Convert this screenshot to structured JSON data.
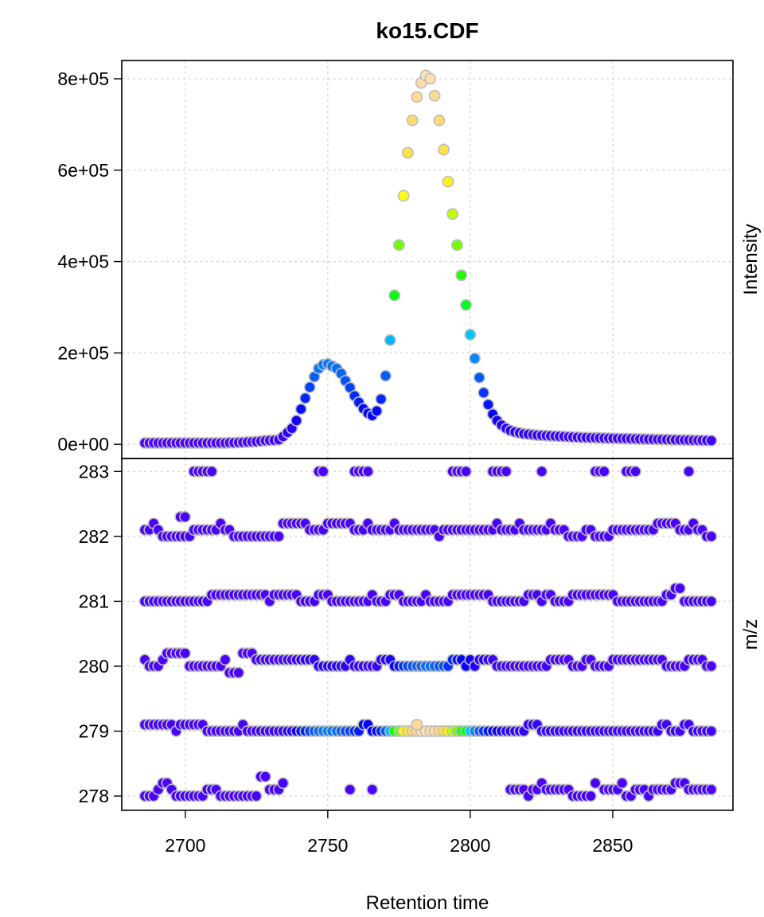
{
  "chart_data": [
    {
      "type": "scatter",
      "title": "ko15.CDF",
      "xlabel": "Retention time",
      "ylabel": "Intensity",
      "xlim": [
        2677.7,
        2892.2
      ],
      "ylim": [
        -31000,
        840000
      ],
      "x_ticks": [
        "2700",
        "2750",
        "2800",
        "2850"
      ],
      "x_tick_values": [
        2700,
        2750,
        2800,
        2850
      ],
      "y_ticks": [
        "0e+00",
        "2e+05",
        "4e+05",
        "6e+05",
        "8e+05"
      ],
      "y_tick_values": [
        0,
        200000,
        400000,
        600000,
        800000
      ],
      "grid": true,
      "colormap": "topo",
      "marker_border_color": "#bdbdbd",
      "rt": [
        2685.8,
        2687.4,
        2688.9,
        2690.5,
        2692.1,
        2693.6,
        2695.2,
        2696.8,
        2698.3,
        2699.9,
        2701.5,
        2703.0,
        2704.6,
        2706.1,
        2707.7,
        2709.3,
        2710.8,
        2712.4,
        2714.0,
        2715.5,
        2717.1,
        2718.7,
        2720.2,
        2721.8,
        2723.4,
        2724.9,
        2726.5,
        2728.1,
        2729.6,
        2731.2,
        2732.8,
        2734.3,
        2735.9,
        2737.4,
        2739.0,
        2740.6,
        2742.1,
        2743.7,
        2745.3,
        2746.8,
        2748.4,
        2750.0,
        2751.5,
        2753.1,
        2754.7,
        2756.2,
        2757.8,
        2759.4,
        2760.9,
        2762.5,
        2764.1,
        2765.6,
        2767.2,
        2768.7,
        2770.3,
        2771.9,
        2773.4,
        2775.0,
        2776.6,
        2778.1,
        2779.7,
        2781.3,
        2782.8,
        2784.4,
        2786.0,
        2787.5,
        2789.1,
        2790.7,
        2792.2,
        2793.8,
        2795.4,
        2796.9,
        2798.5,
        2800.0,
        2801.6,
        2803.2,
        2804.7,
        2806.3,
        2807.9,
        2809.4,
        2811.0,
        2812.6,
        2814.1,
        2815.7,
        2817.3,
        2818.8,
        2820.4,
        2822.0,
        2823.5,
        2825.1,
        2826.7,
        2828.2,
        2829.8,
        2831.3,
        2832.9,
        2834.5,
        2836.0,
        2837.6,
        2839.2,
        2840.7,
        2842.3,
        2843.9,
        2845.4,
        2847.0,
        2848.6,
        2850.1,
        2851.7,
        2853.3,
        2854.8,
        2856.4,
        2858.0,
        2859.5,
        2861.1,
        2862.6,
        2864.2,
        2865.8,
        2867.3,
        2868.9,
        2870.5,
        2872.0,
        2873.6,
        2875.2,
        2876.7,
        2878.3,
        2879.9,
        2881.4,
        2883.0,
        2884.6
      ],
      "intensity": [
        3000,
        3000,
        3000,
        3000,
        3000,
        3000,
        3000,
        3000,
        3000,
        3000,
        3000,
        3000,
        3000,
        3000,
        3000,
        3000,
        3000,
        3000,
        3000,
        3500,
        3500,
        4000,
        4500,
        5000,
        5500,
        6000,
        7000,
        8000,
        8500,
        9000,
        10000,
        17000,
        26000,
        35000,
        52000,
        77000,
        101000,
        125000,
        148000,
        166000,
        174000,
        176000,
        171000,
        166000,
        155000,
        139000,
        124000,
        106000,
        92000,
        78000,
        68000,
        63000,
        73000,
        99000,
        150000,
        228000,
        326000,
        436000,
        544000,
        638000,
        709000,
        760000,
        791000,
        807000,
        800000,
        763000,
        709000,
        645000,
        575000,
        504000,
        436000,
        370000,
        305000,
        240000,
        188000,
        146000,
        113000,
        87000,
        66000,
        52000,
        42000,
        35000,
        30000,
        27000,
        25000,
        23000,
        22000,
        21000,
        20000,
        19500,
        19000,
        18500,
        18000,
        17500,
        17000,
        16500,
        16000,
        15500,
        15000,
        14800,
        14500,
        14200,
        14000,
        13700,
        13400,
        13200,
        13000,
        12700,
        12400,
        12200,
        12000,
        11700,
        11500,
        11200,
        11000,
        10800,
        10500,
        10300,
        10000,
        9800,
        9600,
        9400,
        9200,
        9000,
        8800,
        8600,
        8400,
        8200
      ]
    },
    {
      "type": "scatter",
      "xlabel": "Retention time",
      "ylabel": "m/z",
      "xlim": [
        2677.7,
        2892.2
      ],
      "ylim": [
        277.78,
        283.2
      ],
      "y_ticks": [
        "278",
        "279",
        "280",
        "281",
        "282",
        "283"
      ],
      "y_tick_values": [
        278,
        279,
        280,
        281,
        282,
        283
      ],
      "grid": true,
      "mz_bands": {
        "283": [
          null,
          null,
          null,
          null,
          null,
          null,
          null,
          null,
          null,
          null,
          null,
          283,
          283,
          283,
          283,
          283,
          null,
          null,
          null,
          null,
          null,
          null,
          null,
          null,
          null,
          null,
          null,
          null,
          null,
          null,
          null,
          null,
          null,
          null,
          null,
          null,
          null,
          null,
          null,
          283,
          283,
          null,
          null,
          null,
          null,
          null,
          null,
          283,
          283,
          283,
          283,
          null,
          null,
          null,
          null,
          null,
          null,
          null,
          null,
          null,
          null,
          null,
          null,
          null,
          null,
          null,
          null,
          null,
          null,
          283,
          283,
          283,
          283,
          null,
          null,
          null,
          null,
          null,
          283,
          283,
          283,
          283,
          null,
          null,
          null,
          null,
          null,
          null,
          null,
          283,
          null,
          null,
          null,
          null,
          null,
          null,
          null,
          null,
          null,
          null,
          null,
          283,
          283,
          283,
          null,
          null,
          null,
          null,
          283,
          283,
          283,
          null,
          null,
          null,
          null,
          null,
          null,
          null,
          null,
          null,
          null,
          null,
          283,
          null,
          null,
          null,
          null,
          null
        ],
        "282": [
          282.1,
          282.1,
          282.2,
          282.1,
          282,
          282,
          282,
          282,
          282,
          282,
          282,
          282.1,
          282.1,
          282.1,
          282.1,
          282.1,
          282.1,
          282.2,
          282.1,
          282.1,
          282,
          282,
          282,
          282,
          282,
          282,
          282,
          282,
          282,
          282,
          282,
          282.2,
          282.2,
          282.2,
          282.2,
          282.2,
          282.2,
          282.1,
          282.1,
          282.1,
          282.1,
          282.2,
          282.2,
          282.2,
          282.2,
          282.2,
          282.2,
          282.1,
          282.1,
          282.1,
          282.2,
          282.1,
          282.1,
          282.1,
          282.1,
          282.1,
          282.2,
          282.1,
          282.1,
          282.1,
          282.1,
          282.1,
          282.1,
          282.1,
          282.1,
          282.1,
          282,
          282.1,
          282.1,
          282.1,
          282.1,
          282.1,
          282.1,
          282.1,
          282.1,
          282.1,
          282.1,
          282.1,
          282.1,
          282.2,
          282.1,
          282.1,
          282.1,
          282.1,
          282.2,
          282.1,
          282.1,
          282.1,
          282.1,
          282.1,
          282.1,
          282.2,
          282.1,
          282.1,
          282.1,
          282,
          282,
          282,
          282,
          282.1,
          282.1,
          282,
          282,
          282,
          282,
          282.1,
          282.1,
          282.1,
          282.1,
          282.1,
          282.1,
          282.1,
          282.1,
          282.1,
          282.1,
          282.2,
          282.2,
          282.2,
          282.2,
          282.2,
          282.1,
          282.1,
          282.1,
          282.2,
          282.1,
          282.1,
          282,
          282
        ],
        "281": [
          281,
          281,
          281,
          281,
          281,
          281,
          281,
          281,
          281,
          281,
          281,
          281,
          281,
          281,
          281,
          281.1,
          281.1,
          281.1,
          281.1,
          281.1,
          281.1,
          281.1,
          281.1,
          281.1,
          281.1,
          281.1,
          281.1,
          281.1,
          281,
          281.1,
          281.1,
          281.1,
          281.1,
          281.1,
          281.1,
          281,
          281,
          281,
          281,
          281.1,
          281.1,
          281.1,
          281,
          281,
          281,
          281,
          281,
          281,
          281,
          281,
          281,
          281.1,
          281,
          281,
          281,
          281.1,
          281.1,
          281.1,
          281,
          281,
          281,
          281,
          281,
          281.1,
          281,
          281,
          281,
          281,
          281,
          281.1,
          281.1,
          281.1,
          281.1,
          281.1,
          281.1,
          281.1,
          281.1,
          281.1,
          281,
          281,
          281,
          281,
          281,
          281,
          281,
          281,
          281.1,
          281.1,
          281.1,
          281,
          281.1,
          281.1,
          281,
          281,
          281,
          281,
          281.1,
          281.1,
          281.1,
          281.1,
          281.1,
          281.1,
          281.1,
          281.1,
          281.1,
          281.1,
          281,
          281,
          281,
          281,
          281,
          281,
          281,
          281,
          281,
          281,
          281,
          281.1,
          281.1,
          281.2,
          281.2,
          281,
          281,
          281,
          281,
          281,
          281,
          281
        ],
        "280": [
          280.1,
          280,
          280,
          280,
          280.1,
          280.2,
          280.2,
          280.2,
          280.2,
          280.2,
          280,
          280,
          280,
          280,
          280,
          280,
          280,
          280,
          280.1,
          279.9,
          279.9,
          279.9,
          280.2,
          280.2,
          280.2,
          280.1,
          280.1,
          280.1,
          280.1,
          280.1,
          280.1,
          280.1,
          280.1,
          280.1,
          280.1,
          280.1,
          280.1,
          280.1,
          280.1,
          280,
          280,
          280,
          280,
          280,
          280,
          280,
          280.1,
          280,
          280,
          280,
          280,
          280,
          280,
          280.1,
          280.1,
          280.1,
          280,
          280,
          280,
          280,
          280,
          280,
          280,
          280,
          280,
          280,
          280,
          280,
          280,
          280.1,
          280.1,
          280.1,
          280,
          280.1,
          280,
          280.1,
          280.1,
          280.1,
          280.1,
          280,
          280,
          280,
          280,
          280,
          280,
          280,
          280,
          280,
          280,
          280,
          280,
          280.1,
          280.1,
          280.1,
          280.1,
          280.1,
          280,
          280,
          280,
          280.1,
          280.1,
          280,
          280,
          280,
          280,
          280.1,
          280.1,
          280.1,
          280.1,
          280.1,
          280.1,
          280.1,
          280.1,
          280.1,
          280.1,
          280.1,
          280.1,
          280,
          280,
          280,
          280,
          280,
          280.1,
          280.1,
          280.1,
          280.1,
          280,
          280
        ],
        "279": [
          279.1,
          279.1,
          279.1,
          279.1,
          279.1,
          279.1,
          279.1,
          279,
          279.1,
          279.1,
          279.1,
          279.1,
          279.1,
          279.1,
          279,
          279,
          279,
          279,
          279,
          279,
          279,
          279,
          279.1,
          279,
          279,
          279,
          279,
          279,
          279,
          279,
          279,
          279,
          279,
          279,
          279,
          279,
          279,
          279,
          279,
          279,
          279,
          279,
          279,
          279,
          279,
          279,
          279,
          279,
          279,
          279.1,
          279.1,
          279,
          279,
          279,
          279,
          279,
          279,
          279,
          279,
          279,
          279,
          279,
          279,
          279,
          279,
          279,
          279,
          279,
          279,
          279,
          279,
          279,
          279,
          279,
          279,
          279,
          279,
          279,
          279,
          279,
          279,
          279,
          279,
          279,
          279,
          279,
          279.1,
          279.1,
          279.1,
          279,
          279,
          279,
          279,
          279,
          279,
          279,
          279,
          279,
          279,
          279,
          279,
          279,
          279,
          279,
          279,
          279,
          279,
          279,
          279,
          279,
          279,
          279,
          279,
          279,
          279,
          279,
          279.1,
          279.1,
          279,
          279,
          279,
          279.1,
          279.1,
          279,
          279,
          279,
          279,
          279
        ],
        "278": [
          278,
          278,
          278,
          278.1,
          278.2,
          278.2,
          278.1,
          278,
          278,
          278,
          278,
          278,
          278,
          278,
          278.1,
          278.1,
          278.1,
          278,
          278,
          278,
          278,
          278,
          278,
          278,
          278,
          278,
          278.3,
          278.3,
          278.1,
          278.1,
          278.1,
          278.2,
          null,
          null,
          null,
          null,
          null,
          null,
          null,
          null,
          null,
          null,
          null,
          null,
          null,
          null,
          278.1,
          null,
          null,
          null,
          null,
          278.1,
          null,
          null,
          null,
          null,
          null,
          null,
          null,
          null,
          null,
          null,
          null,
          null,
          null,
          null,
          null,
          null,
          null,
          null,
          null,
          null,
          null,
          null,
          null,
          null,
          null,
          null,
          null,
          null,
          null,
          null,
          278.1,
          278.1,
          278.1,
          278.1,
          278,
          278.1,
          278.1,
          278.2,
          278.1,
          278.1,
          278.1,
          278.1,
          278.1,
          278.1,
          278,
          278,
          278,
          278,
          278,
          278.2,
          null,
          278.1,
          278.1,
          278.1,
          278.1,
          278.2,
          278,
          278,
          278.1,
          278.1,
          278.1,
          278,
          278.1,
          278.1,
          278.1,
          278.1,
          278.1,
          278.2,
          278.2,
          278.2,
          278.1,
          278.1,
          278.1,
          278.1,
          278.1,
          278.1
        ]
      },
      "extra_points": [
        {
          "rt": 2698.3,
          "mz": 282.3
        },
        {
          "rt": 2699.9,
          "mz": 282.3
        },
        {
          "rt": 2781.3,
          "mz": 279.1
        }
      ]
    }
  ]
}
